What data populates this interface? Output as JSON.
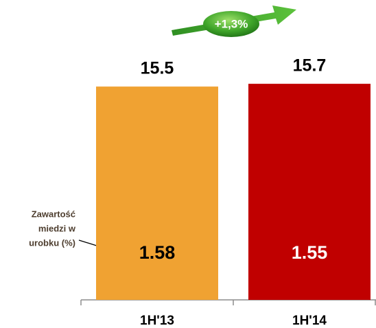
{
  "chart_data": {
    "type": "bar",
    "categories": [
      "1H'13",
      "1H'14"
    ],
    "values": [
      15.5,
      15.7
    ],
    "colors": [
      "#f0a232",
      "#c00000"
    ],
    "copper_values": [
      1.58,
      1.55
    ],
    "copper_label_colors": [
      "#000000",
      "#ffffff"
    ],
    "copper_label": [
      "Zawartość",
      "miedzi w",
      "urobku (%)"
    ],
    "change_annotation": "+1,3%",
    "ylim": [
      0,
      18
    ]
  }
}
